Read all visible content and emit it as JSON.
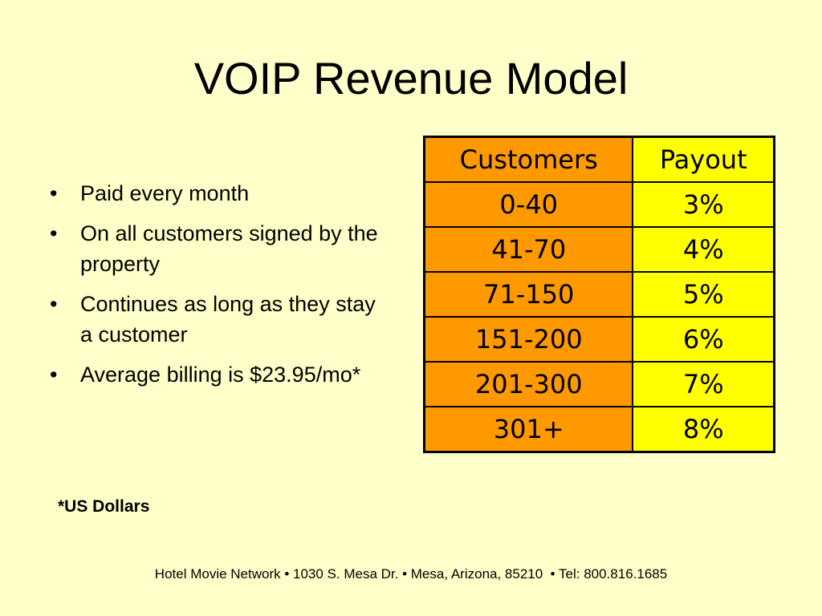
{
  "slide": {
    "title": "VOIP Revenue Model",
    "bullets": [
      "Paid every month",
      "On all customers signed by the property",
      "Continues as long as they stay a customer",
      "Average billing is $23.95/mo*"
    ],
    "footnote": "*US Dollars",
    "footer": "Hotel Movie Network • 1030 S. Mesa Dr. • Mesa, Arizona, 85210  • Tel: 800.816.1685"
  },
  "table": {
    "headers": [
      "Customers",
      "Payout"
    ],
    "rows": [
      [
        "0-40",
        "3%"
      ],
      [
        "41-70",
        "4%"
      ],
      [
        "71-150",
        "5%"
      ],
      [
        "151-200",
        "6%"
      ],
      [
        "201-300",
        "7%"
      ],
      [
        "301+",
        "8%"
      ]
    ]
  },
  "colors": {
    "background": "#ffffc9",
    "customers_column": "#ff9900",
    "payout_column": "#ffff00"
  }
}
